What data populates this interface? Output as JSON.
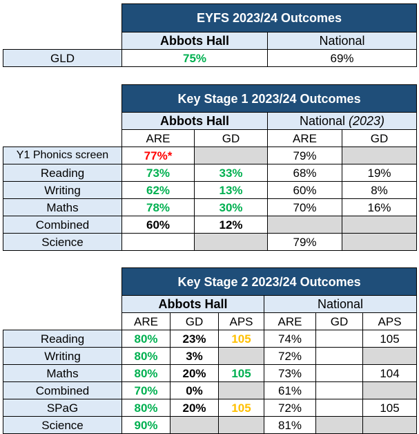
{
  "eyfs": {
    "title": "EYFS 2023/24 Outcomes",
    "school": "Abbots Hall",
    "national": "National",
    "row_label": "GLD",
    "school_value": "75%",
    "national_value": "69%"
  },
  "ks1": {
    "title": "Key Stage 1 2023/24 Outcomes",
    "school": "Abbots Hall",
    "national": "National",
    "national_note": "(2023)",
    "col_are": "ARE",
    "col_gd": "GD",
    "rows": [
      {
        "label": "Y1 Phonics screen",
        "are": "77%*",
        "gd": "",
        "nat_are": "79%",
        "nat_gd": ""
      },
      {
        "label": "Reading",
        "are": "73%",
        "gd": "33%",
        "nat_are": "68%",
        "nat_gd": "19%"
      },
      {
        "label": "Writing",
        "are": "62%",
        "gd": "13%",
        "nat_are": "60%",
        "nat_gd": "8%"
      },
      {
        "label": "Maths",
        "are": "78%",
        "gd": "30%",
        "nat_are": "70%",
        "nat_gd": "16%"
      },
      {
        "label": "Combined",
        "are": "60%",
        "gd": "12%",
        "nat_are": "",
        "nat_gd": ""
      },
      {
        "label": "Science",
        "are": "",
        "gd": "",
        "nat_are": "79%",
        "nat_gd": ""
      }
    ]
  },
  "ks2": {
    "title": "Key Stage 2 2023/24 Outcomes",
    "school": "Abbots Hall",
    "national": "National",
    "col_are": "ARE",
    "col_gd": "GD",
    "col_aps": "APS",
    "rows": [
      {
        "label": "Reading",
        "are": "80%",
        "gd": "23%",
        "aps": "105",
        "nat_are": "74%",
        "nat_gd": "",
        "nat_aps": "105"
      },
      {
        "label": "Writing",
        "are": "80%",
        "gd": "3%",
        "aps": "",
        "nat_are": "72%",
        "nat_gd": "",
        "nat_aps": ""
      },
      {
        "label": "Maths",
        "are": "80%",
        "gd": "20%",
        "aps": "105",
        "nat_are": "73%",
        "nat_gd": "",
        "nat_aps": "104"
      },
      {
        "label": "Combined",
        "are": "70%",
        "gd": "0%",
        "aps": "",
        "nat_are": "61%",
        "nat_gd": "",
        "nat_aps": ""
      },
      {
        "label": "SPaG",
        "are": "80%",
        "gd": "20%",
        "aps": "105",
        "nat_are": "72%",
        "nat_gd": "",
        "nat_aps": "105"
      },
      {
        "label": "Science",
        "are": "90%",
        "gd": "",
        "aps": "",
        "nat_are": "81%",
        "nat_gd": "",
        "nat_aps": ""
      }
    ]
  },
  "colors": {
    "header_blue": "#1f4e79",
    "light_blue": "#dde9f6",
    "gray": "#d9d9d9",
    "green": "#00b050",
    "red": "#ff0000",
    "amber": "#ffc000"
  }
}
